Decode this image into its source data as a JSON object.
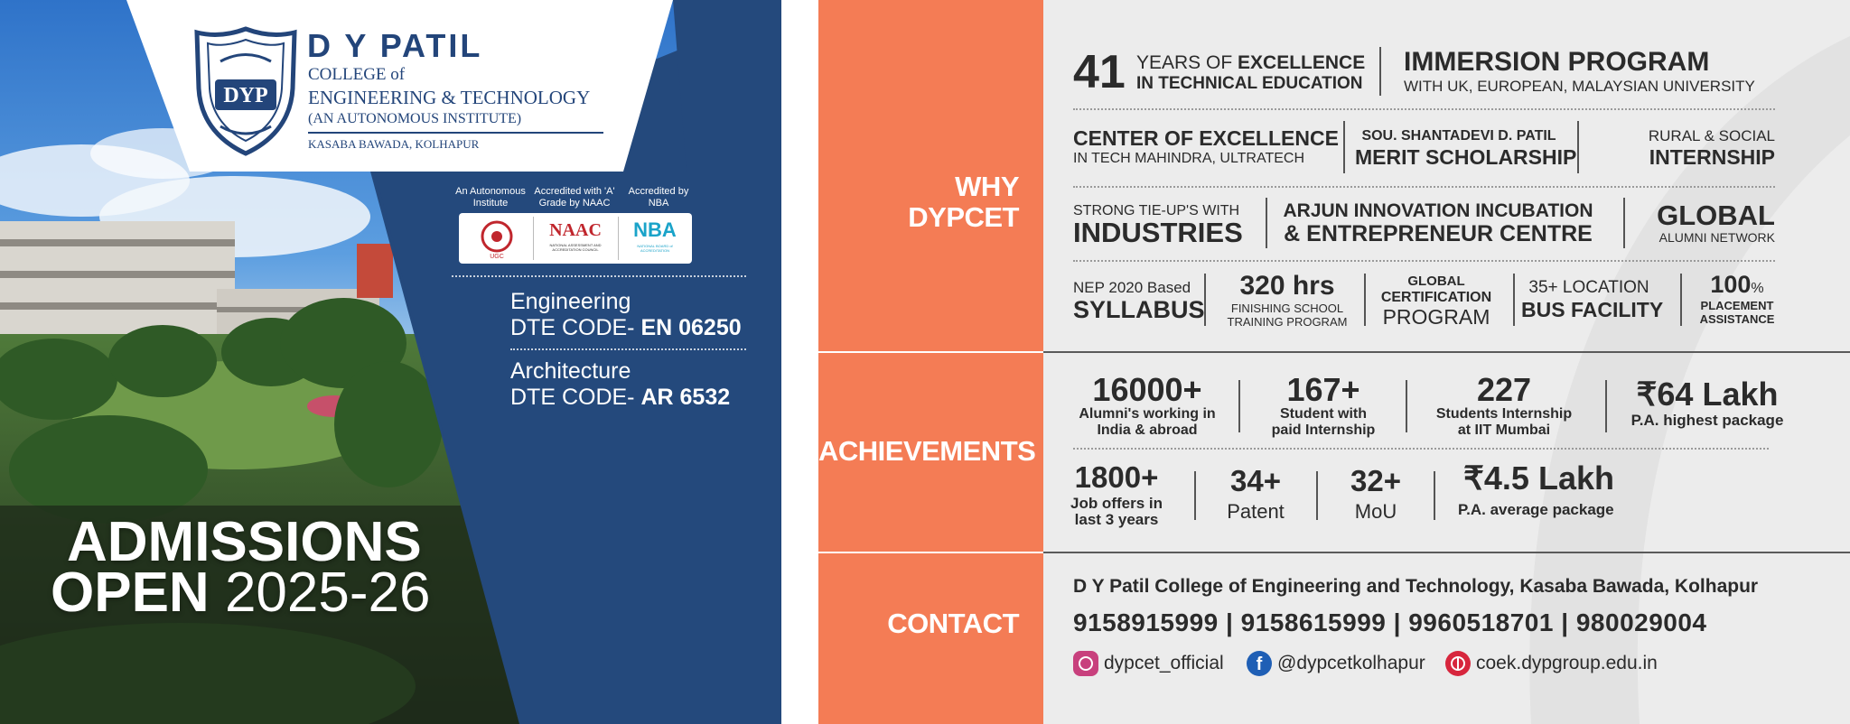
{
  "college": {
    "name_line1": "D Y PATIL",
    "name_line2": "COLLEGE of",
    "name_line3": "ENGINEERING & TECHNOLOGY",
    "name_line4": "(AN AUTONOMOUS INSTITUTE)",
    "location": "KASABA BAWADA, KOLHAPUR",
    "logo_text": "DYP"
  },
  "accreditations": [
    {
      "label": "An Autonomous Institute",
      "badge": "UGC"
    },
    {
      "label": "Accredited with 'A' Grade by NAAC",
      "badge": "NAAC",
      "badge_sub": "NATIONAL ASSESSMENT AND ACCREDITATION COUNCIL"
    },
    {
      "label": "Accredited by NBA",
      "badge": "NBA",
      "badge_sub": "NATIONAL BOARD of ACCREDITATION"
    }
  ],
  "dte": {
    "eng_label": "Engineering",
    "eng_code_prefix": "DTE CODE-",
    "eng_code": "EN 06250",
    "arch_label": "Architecture",
    "arch_code_prefix": "DTE CODE-",
    "arch_code": "AR 6532"
  },
  "admissions": {
    "line1": "ADMISSIONS",
    "line2_bold": "OPEN",
    "line2_year": "2025-26"
  },
  "sections": {
    "why": "WHY\nDYPCET",
    "achievements": "ACHIEVEMENTS",
    "contact": "CONTACT"
  },
  "why": {
    "years_num": "41",
    "years_l1a": "YEARS OF",
    "years_l1b": "EXCELLENCE",
    "years_l2": "IN TECHNICAL EDUCATION",
    "immersion_title": "IMMERSION PROGRAM",
    "immersion_sub": "WITH UK, EUROPEAN, MALAYSIAN UNIVERSITY",
    "coe_title": "CENTER OF EXCELLENCE",
    "coe_sub": "IN TECH MAHINDRA, ULTRATECH",
    "merit_l1": "SOU. SHANTADEVI D. PATIL",
    "merit_l2": "MERIT SCHOLARSHIP",
    "rural_l1": "RURAL & SOCIAL",
    "rural_l2": "INTERNSHIP",
    "tieup_l1": "STRONG TIE-UP'S WITH",
    "tieup_l2": "INDUSTRIES",
    "arjun_l1": "ARJUN INNOVATION INCUBATION",
    "arjun_l2": "& ENTREPRENEUR CENTRE",
    "global_l1": "GLOBAL",
    "global_l2": "ALUMNI NETWORK",
    "nep_l1": "NEP 2020 Based",
    "nep_l2": "SYLLABUS",
    "hrs_l1": "320 hrs",
    "hrs_l2": "FINISHING SCHOOL",
    "hrs_l3": "TRAINING PROGRAM",
    "cert_l1": "GLOBAL",
    "cert_l2": "CERTIFICATION",
    "cert_l3": "PROGRAM",
    "bus_l1": "35+ LOCATION",
    "bus_l2": "BUS FACILITY",
    "place_l1": "100",
    "place_pct": "%",
    "place_l2": "PLACEMENT",
    "place_l3": "ASSISTANCE"
  },
  "achievements": [
    {
      "value": "16000+",
      "l1": "Alumni's working in",
      "l2": "India & abroad"
    },
    {
      "value": "167+",
      "l1": "Student with",
      "l2": "paid Internship"
    },
    {
      "value": "227",
      "l1": "Students Internship",
      "l2": "at IIT Mumbai"
    },
    {
      "value": "₹64 Lakh",
      "l1": "P.A. highest package"
    },
    {
      "value": "1800+",
      "l1": "Job offers in",
      "l2": "last 3 years"
    },
    {
      "value": "34+",
      "l1": "Patent"
    },
    {
      "value": "32+",
      "l1": "MoU"
    },
    {
      "value": "₹4.5 Lakh",
      "l1": "P.A. average package"
    }
  ],
  "contact": {
    "address": "D Y Patil College of Engineering and Technology, Kasaba Bawada, Kolhapur",
    "phones": "9158915999 | 9158615999 | 9960518701 | 980029004",
    "instagram": "dypcet_official",
    "facebook": "@dypcetkolhapur",
    "website": "coek.dypgroup.edu.in"
  },
  "colors": {
    "navy": "#24497c",
    "orange": "#f47c55",
    "grey": "#ececec"
  }
}
